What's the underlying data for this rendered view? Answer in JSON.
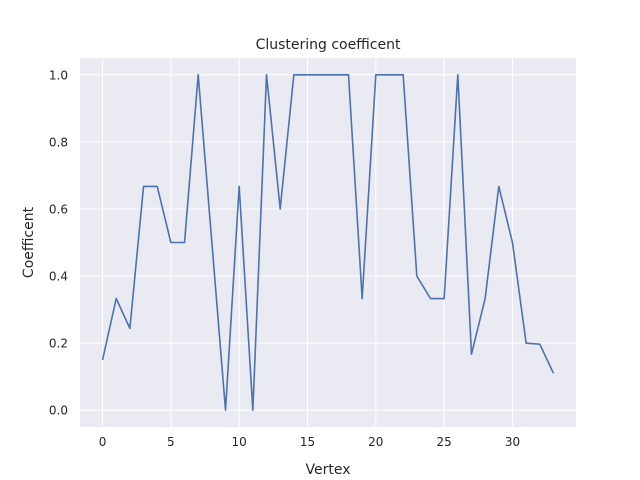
{
  "chart_data": {
    "type": "line",
    "title": "Clustering coefficent",
    "xlabel": "Vertex",
    "ylabel": "Coefficent",
    "xlim": [
      -1.65,
      34.65
    ],
    "ylim": [
      -0.05,
      1.05
    ],
    "xticks": [
      0,
      5,
      10,
      15,
      20,
      25,
      30
    ],
    "yticks": [
      0.0,
      0.2,
      0.4,
      0.6,
      0.8,
      1.0
    ],
    "xtick_labels": [
      "0",
      "5",
      "10",
      "15",
      "20",
      "25",
      "30"
    ],
    "ytick_labels": [
      "0.0",
      "0.2",
      "0.4",
      "0.6",
      "0.8",
      "1.0"
    ],
    "grid": true,
    "background": "#eaeaf2",
    "series": [
      {
        "color": "#4c72b0",
        "x": [
          0,
          1,
          2,
          3,
          4,
          5,
          6,
          7,
          8,
          9,
          10,
          11,
          12,
          13,
          14,
          15,
          16,
          17,
          18,
          19,
          20,
          21,
          22,
          23,
          24,
          25,
          26,
          27,
          28,
          29,
          30,
          31,
          32,
          33
        ],
        "values": [
          0.15,
          0.333,
          0.244,
          0.667,
          0.667,
          0.5,
          0.5,
          1.0,
          0.5,
          0.0,
          0.667,
          0.0,
          1.0,
          0.6,
          1.0,
          1.0,
          1.0,
          1.0,
          1.0,
          0.333,
          1.0,
          1.0,
          1.0,
          0.4,
          0.333,
          0.333,
          1.0,
          0.167,
          0.333,
          0.667,
          0.5,
          0.2,
          0.197,
          0.11
        ]
      }
    ]
  }
}
